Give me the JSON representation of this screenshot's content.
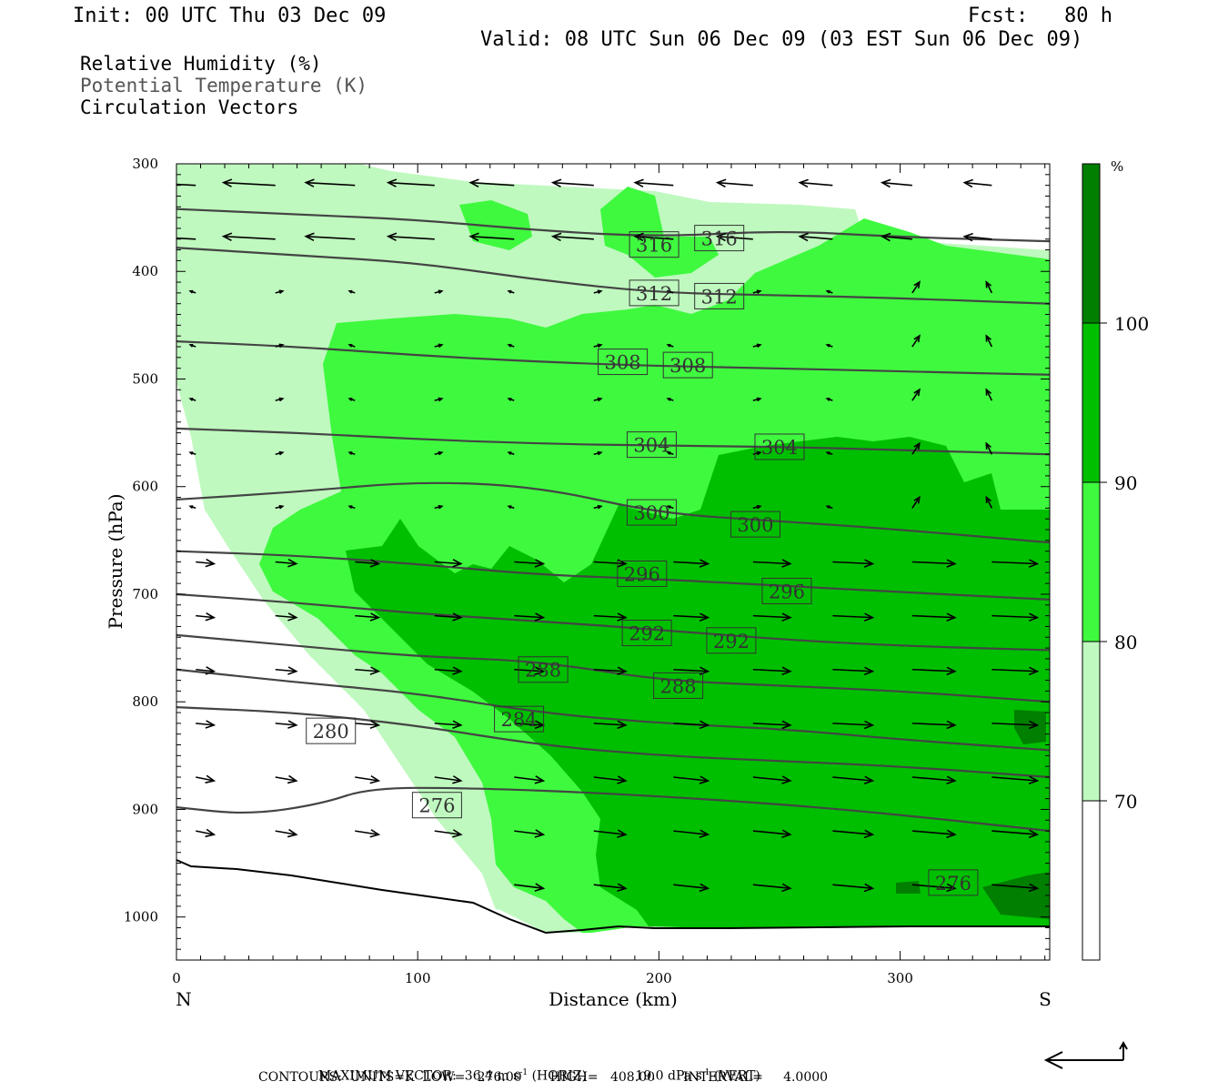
{
  "header": {
    "init": "Init: 00 UTC Thu 03 Dec 09",
    "fcst": "Fcst:   80 h",
    "valid": "Valid: 08 UTC Sun 06 Dec 09 (03 EST Sun 06 Dec 09)"
  },
  "fields": {
    "rh": "Relative Humidity (%)",
    "theta": "Potential Temperature (K)",
    "vectors": "Circulation Vectors"
  },
  "footer": {
    "max_vector_label": "MAXIMUM VECTOR:",
    "max_horiz": "36.4 m s",
    "horiz_tag": "(HORIZ)",
    "max_vert": "19.0 dPa s",
    "vert_tag": "(VERT)",
    "exp": "-1",
    "contours": "CONTOURS:  UNITS=K  LOW=   276.00       HIGH=   408.00       INTERVAL=     4.0000"
  },
  "colors": {
    "rh_70": "#bff9bf",
    "rh_80": "#3ff93f",
    "rh_90": "#00bf00",
    "rh_100": "#007f00",
    "contour": "#444444"
  },
  "chart_data": {
    "type": "heatmap",
    "xlabel": "Distance (km)",
    "ylabel": "Pressure (hPa)",
    "xlim": [
      0,
      362
    ],
    "ylim": [
      1040,
      300
    ],
    "x_ticks": [
      0,
      100,
      200,
      300
    ],
    "y_ticks": [
      300,
      400,
      500,
      600,
      700,
      800,
      900,
      1000
    ],
    "x_end_labels": {
      "left": "N",
      "right": "S"
    },
    "colorbar": {
      "unit": "%",
      "levels": [
        70,
        80,
        90,
        100
      ],
      "colors": [
        "#ffffff",
        "#bff9bf",
        "#3ff93f",
        "#00bf00",
        "#007f00"
      ]
    },
    "isentropes": [
      {
        "value": 316,
        "points": [
          [
            0,
            342
          ],
          [
            50,
            347
          ],
          [
            100,
            352
          ],
          [
            150,
            362
          ],
          [
            200,
            368
          ],
          [
            250,
            362
          ],
          [
            300,
            368
          ],
          [
            362,
            372
          ]
        ]
      },
      {
        "value": 312,
        "points": [
          [
            0,
            378
          ],
          [
            50,
            385
          ],
          [
            100,
            392
          ],
          [
            150,
            408
          ],
          [
            200,
            420
          ],
          [
            250,
            422
          ],
          [
            300,
            425
          ],
          [
            362,
            430
          ]
        ]
      },
      {
        "value": 308,
        "points": [
          [
            0,
            465
          ],
          [
            50,
            470
          ],
          [
            100,
            478
          ],
          [
            150,
            484
          ],
          [
            200,
            488
          ],
          [
            250,
            490
          ],
          [
            300,
            493
          ],
          [
            362,
            496
          ]
        ]
      },
      {
        "value": 304,
        "points": [
          [
            0,
            546
          ],
          [
            50,
            550
          ],
          [
            100,
            556
          ],
          [
            150,
            560
          ],
          [
            200,
            562
          ],
          [
            250,
            563
          ],
          [
            300,
            566
          ],
          [
            362,
            570
          ]
        ]
      },
      {
        "value": 300,
        "points": [
          [
            0,
            612
          ],
          [
            50,
            605
          ],
          [
            100,
            595
          ],
          [
            150,
            600
          ],
          [
            200,
            625
          ],
          [
            250,
            632
          ],
          [
            300,
            640
          ],
          [
            362,
            652
          ]
        ]
      },
      {
        "value": 296,
        "points": [
          [
            0,
            660
          ],
          [
            50,
            664
          ],
          [
            100,
            672
          ],
          [
            150,
            682
          ],
          [
            200,
            686
          ],
          [
            250,
            692
          ],
          [
            300,
            698
          ],
          [
            362,
            705
          ]
        ]
      },
      {
        "value": 292,
        "points": [
          [
            0,
            700
          ],
          [
            50,
            708
          ],
          [
            100,
            718
          ],
          [
            150,
            725
          ],
          [
            200,
            733
          ],
          [
            250,
            742
          ],
          [
            300,
            748
          ],
          [
            362,
            752
          ]
        ]
      },
      {
        "value": 288,
        "points": [
          [
            0,
            738
          ],
          [
            50,
            748
          ],
          [
            100,
            758
          ],
          [
            150,
            762
          ],
          [
            200,
            780
          ],
          [
            250,
            785
          ],
          [
            300,
            790
          ],
          [
            362,
            800
          ]
        ]
      },
      {
        "value": 284,
        "points": [
          [
            0,
            770
          ],
          [
            50,
            782
          ],
          [
            100,
            792
          ],
          [
            150,
            810
          ],
          [
            200,
            820
          ],
          [
            250,
            825
          ],
          [
            300,
            835
          ],
          [
            362,
            845
          ]
        ]
      },
      {
        "value": 280,
        "points": [
          [
            0,
            805
          ],
          [
            50,
            810
          ],
          [
            100,
            822
          ],
          [
            150,
            840
          ],
          [
            200,
            850
          ],
          [
            250,
            855
          ],
          [
            300,
            860
          ],
          [
            362,
            870
          ]
        ]
      },
      {
        "value": 276,
        "points": [
          [
            0,
            898
          ],
          [
            30,
            905
          ],
          [
            60,
            895
          ],
          [
            80,
            880
          ],
          [
            120,
            880
          ],
          [
            180,
            885
          ],
          [
            250,
            895
          ],
          [
            300,
            905
          ],
          [
            362,
            920
          ]
        ]
      }
    ],
    "contour_labels": [
      {
        "text": "316",
        "x": 198,
        "p": 375
      },
      {
        "text": "316",
        "x": 225,
        "p": 369
      },
      {
        "text": "312",
        "x": 198,
        "p": 420
      },
      {
        "text": "312",
        "x": 225,
        "p": 423
      },
      {
        "text": "308",
        "x": 185,
        "p": 484
      },
      {
        "text": "308",
        "x": 212,
        "p": 487
      },
      {
        "text": "304",
        "x": 197,
        "p": 561
      },
      {
        "text": "304",
        "x": 250,
        "p": 563
      },
      {
        "text": "300",
        "x": 197,
        "p": 624
      },
      {
        "text": "300",
        "x": 240,
        "p": 635
      },
      {
        "text": "296",
        "x": 193,
        "p": 681
      },
      {
        "text": "296",
        "x": 253,
        "p": 697
      },
      {
        "text": "292",
        "x": 195,
        "p": 736
      },
      {
        "text": "292",
        "x": 230,
        "p": 743
      },
      {
        "text": "288",
        "x": 152,
        "p": 770
      },
      {
        "text": "288",
        "x": 208,
        "p": 785
      },
      {
        "text": "284",
        "x": 142,
        "p": 816
      },
      {
        "text": "280",
        "x": 64,
        "p": 827
      },
      {
        "text": "276",
        "x": 108,
        "p": 896
      },
      {
        "text": "276",
        "x": 322,
        "p": 968
      }
    ]
  }
}
